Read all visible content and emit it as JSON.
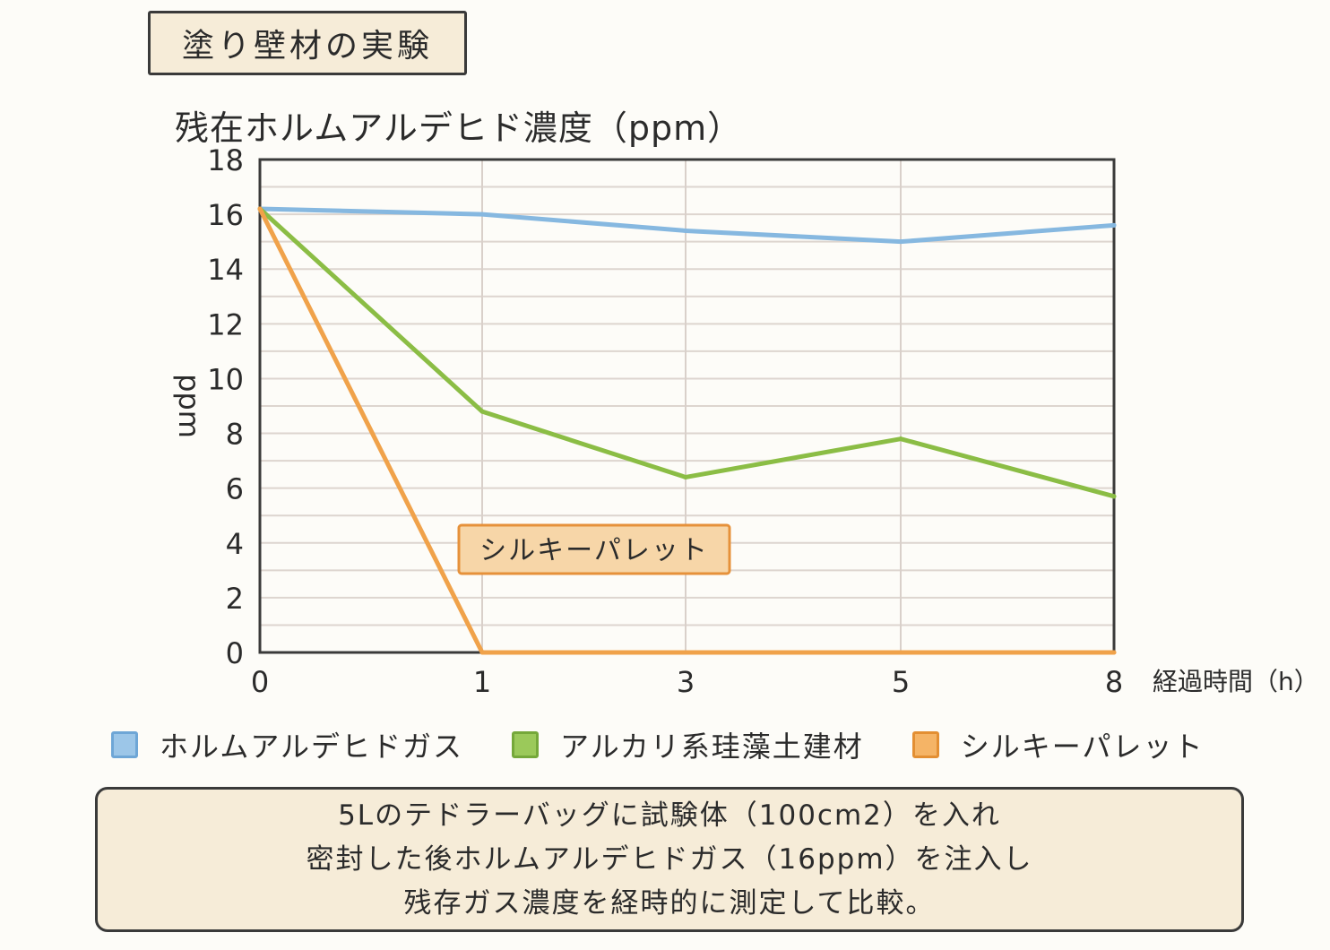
{
  "header": {
    "title": "塗り壁材の実験"
  },
  "chart_data": {
    "type": "line",
    "title": "残在ホルムアルデヒド濃度（ppm）",
    "xlabel": "経過時間（h）",
    "ylabel": "ppm",
    "x": [
      0,
      1,
      3,
      5,
      8
    ],
    "ylim": [
      0,
      18
    ],
    "yticks": [
      0,
      2,
      4,
      6,
      8,
      10,
      12,
      14,
      16,
      18
    ],
    "grid": true,
    "series": [
      {
        "name": "ホルムアルデヒドガス",
        "values": [
          16.2,
          16.0,
          15.4,
          15.0,
          15.6
        ],
        "color": "#86b8e0"
      },
      {
        "name": "アルカリ系珪藻土建材",
        "values": [
          16.2,
          8.8,
          6.4,
          7.8,
          5.7
        ],
        "color": "#8bbd45"
      },
      {
        "name": "シルキーパレット",
        "values": [
          16.2,
          0,
          0,
          0,
          0
        ],
        "color": "#f0a24a"
      }
    ],
    "annotation": {
      "text": "シルキーパレット",
      "series": "シルキーパレット"
    },
    "legend": "bottom"
  },
  "note": {
    "lines": [
      "5Lのテドラーバッグに試験体（100cm2）を入れ",
      "密封した後ホルムアルデヒドガス（16ppm）を注入し",
      "残存ガス濃度を経時的に測定して比較。"
    ]
  }
}
